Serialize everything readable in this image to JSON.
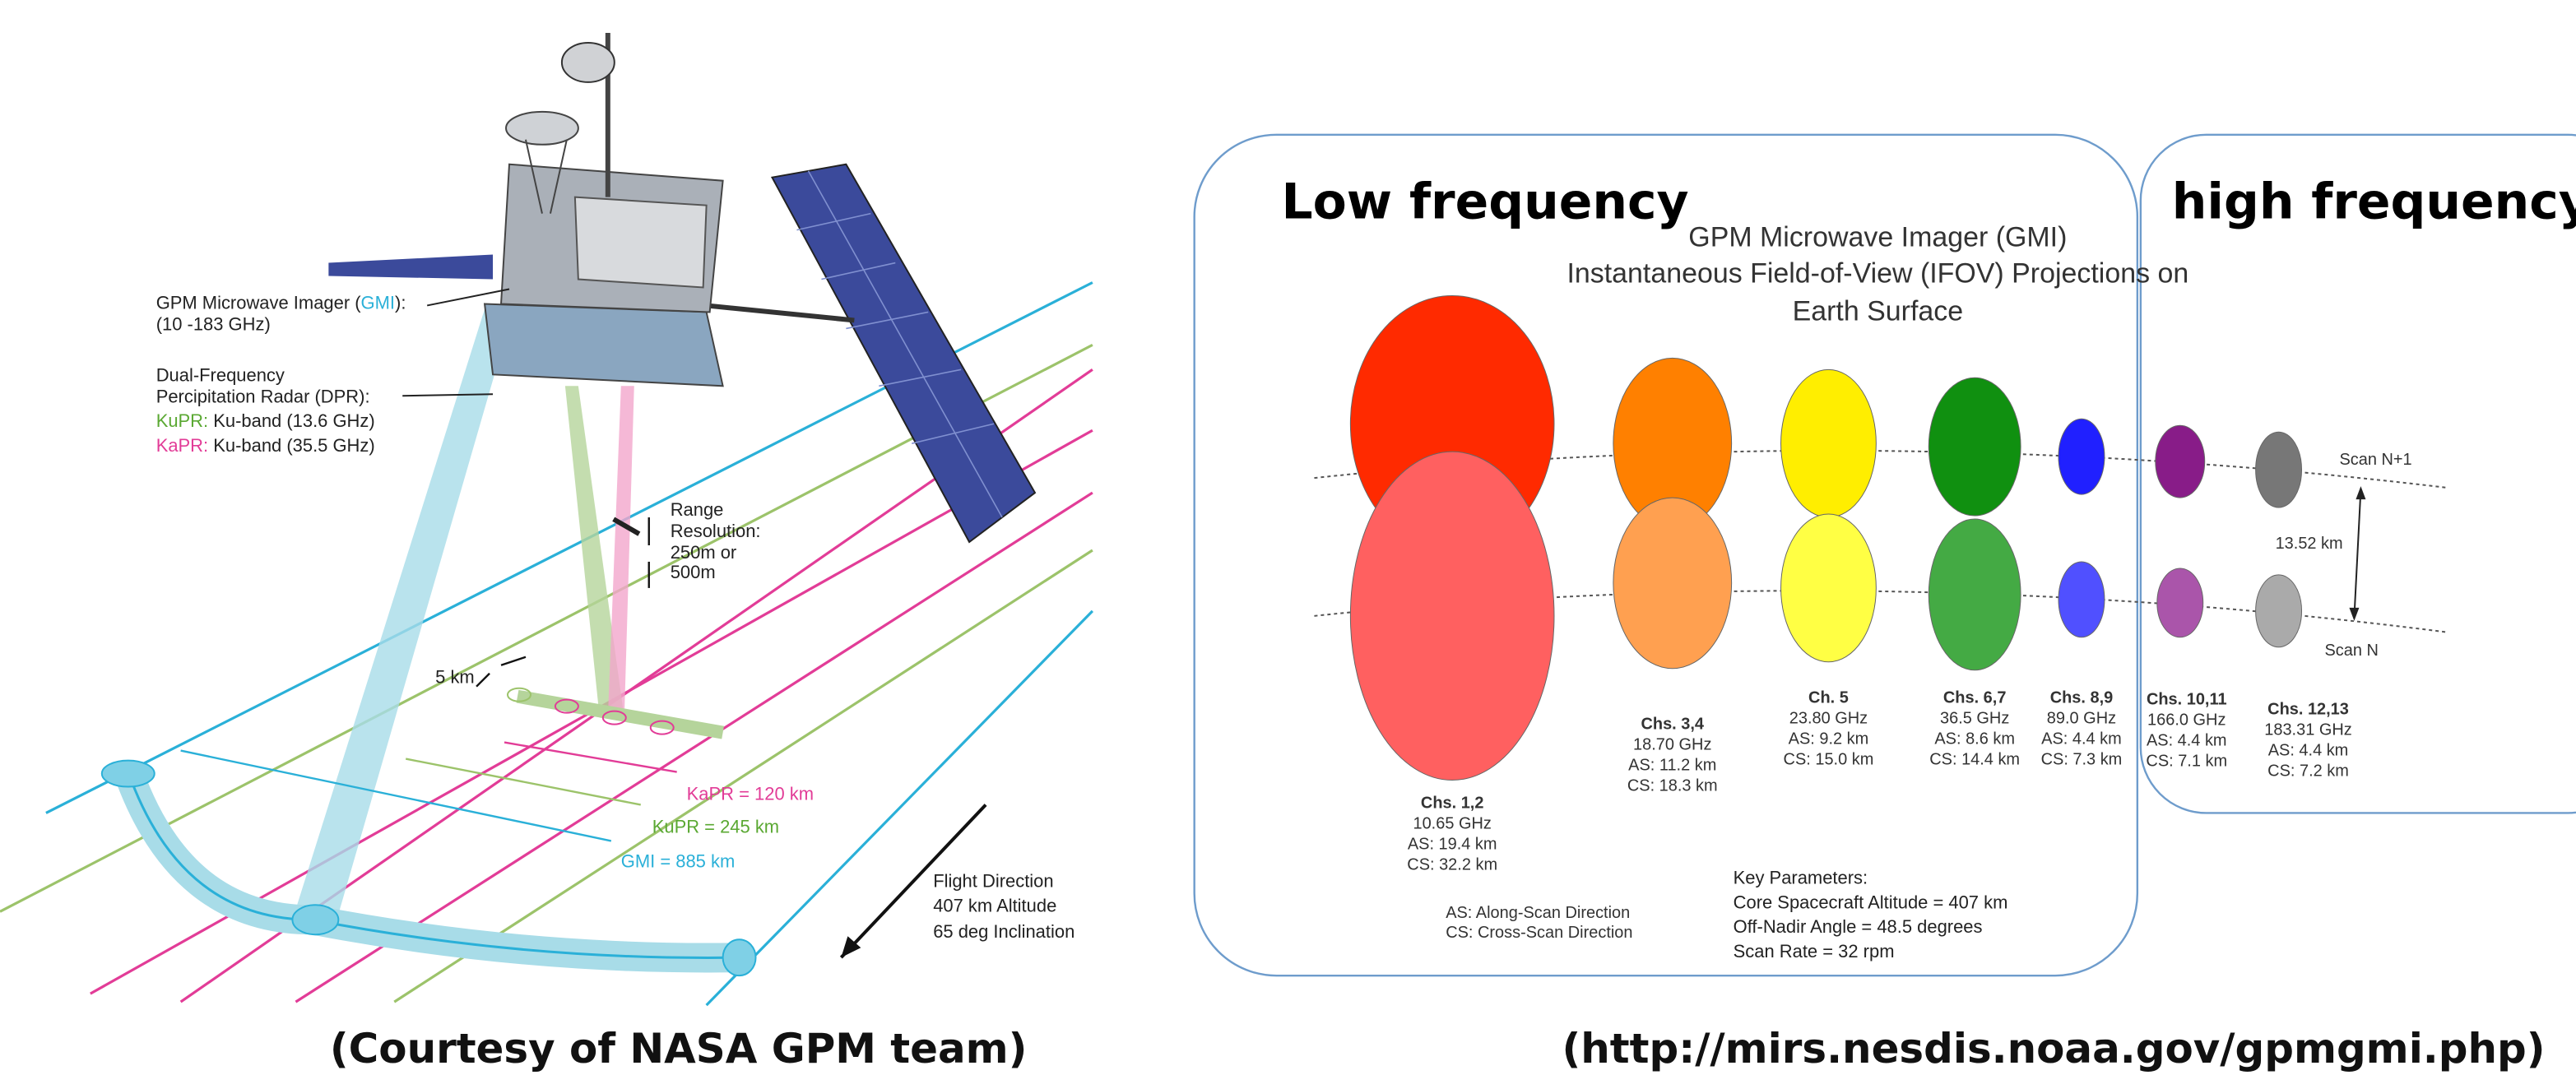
{
  "left": {
    "gmi_label": {
      "prefix": "GPM Microwave Imager (",
      "acronym": "GMI",
      "suffix": "):",
      "range": "(10 -183 GHz)"
    },
    "dpr_label": {
      "line1": "Dual-Frequency",
      "line2": "Percipitation Radar (DPR):",
      "kupr_name": "KuPR:",
      "kupr_desc": " Ku-band (13.6 GHz)",
      "kapr_name": "KaPR:",
      "kapr_desc": " Ku-band (35.5 GHz)"
    },
    "range_resolution": [
      "Range",
      "Resolution:",
      "250m or",
      "500m"
    ],
    "footprint": "5 km",
    "swaths": {
      "kapr": "KaPR = 120 km",
      "kupr": "KuPR = 245 km",
      "gmi": "GMI = 885 km"
    },
    "flight": [
      "Flight Direction",
      "407 km Altitude",
      "65 deg Inclination"
    ],
    "caption": "(Courtesy of NASA GPM team)"
  },
  "right": {
    "low_label": "Low frequency",
    "high_label": "high frequency",
    "title": [
      "GPM Microwave Imager (GMI)",
      "Instantaneous Field-of-View (IFOV) Projections on",
      "Earth Surface"
    ],
    "channels": [
      {
        "name": "Chs. 1,2",
        "freq": "10.65 GHz",
        "as": "AS: 19.4 km",
        "cs": "CS: 32.2 km"
      },
      {
        "name": "Chs. 3,4",
        "freq": "18.70 GHz",
        "as": "AS: 11.2 km",
        "cs": "CS: 18.3 km"
      },
      {
        "name": "Ch. 5",
        "freq": "23.80 GHz",
        "as": "AS: 9.2 km",
        "cs": "CS: 15.0 km"
      },
      {
        "name": "Chs. 6,7",
        "freq": "36.5 GHz",
        "as": "AS: 8.6 km",
        "cs": "CS: 14.4 km"
      },
      {
        "name": "Chs. 8,9",
        "freq": "89.0 GHz",
        "as": "AS: 4.4 km",
        "cs": "CS: 7.3 km"
      },
      {
        "name": "Chs. 10,11",
        "freq": "166.0 GHz",
        "as": "AS: 4.4 km",
        "cs": "CS: 7.1 km"
      },
      {
        "name": "Chs. 12,13",
        "freq": "183.31 GHz",
        "as": "AS: 4.4 km",
        "cs": "CS: 7.2 km"
      }
    ],
    "scan_n1": "Scan N+1",
    "scan_n": "Scan N",
    "scan_spacing": "13.52 km",
    "legend": [
      "AS: Along-Scan Direction",
      "CS: Cross-Scan Direction"
    ],
    "key_parameters": [
      "Key Parameters:",
      "Core Spacecraft Altitude = 407 km",
      "Off-Nadir Angle = 48.5 degrees",
      "Scan Rate = 32 rpm"
    ],
    "caption": "(http://mirs.nesdis.noaa.gov/gpmgmi.php)"
  }
}
